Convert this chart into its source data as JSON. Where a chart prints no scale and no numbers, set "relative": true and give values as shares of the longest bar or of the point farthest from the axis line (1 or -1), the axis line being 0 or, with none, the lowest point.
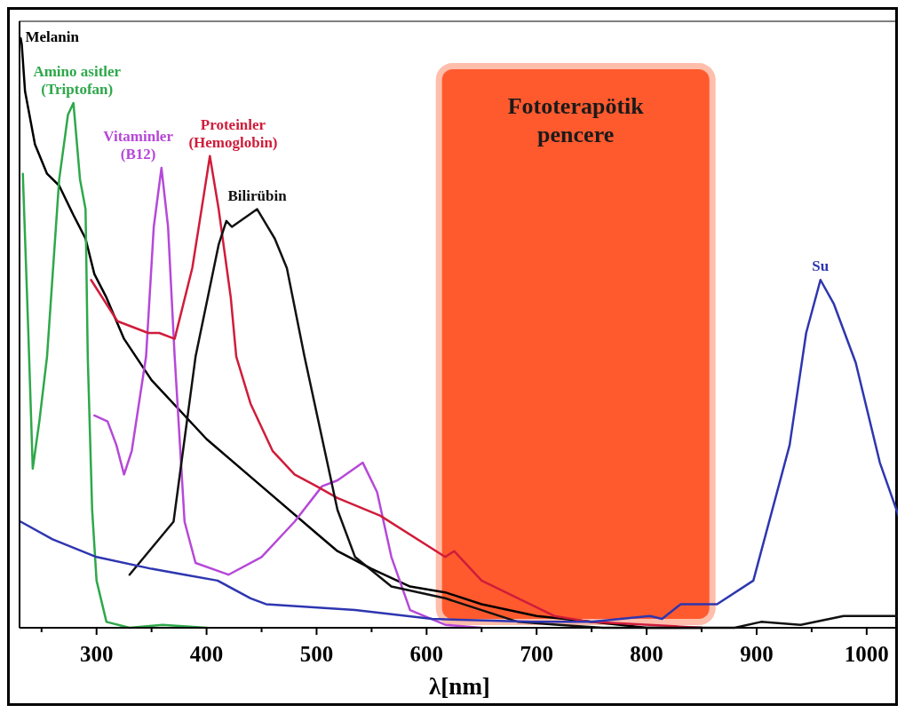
{
  "chart_data": {
    "type": "line",
    "relative": true,
    "xlabel": "λ[nm]",
    "xlim": [
      230,
      1030
    ],
    "xticks": [
      {
        "value": 250,
        "label": null
      },
      300,
      {
        "value": 350,
        "label": null
      },
      400,
      {
        "value": 450,
        "label": null
      },
      500,
      {
        "value": 550,
        "label": null
      },
      600,
      {
        "value": 650,
        "label": null
      },
      700,
      {
        "value": 750,
        "label": null
      },
      800,
      {
        "value": 850,
        "label": null
      },
      900,
      {
        "value": 950,
        "label": null
      },
      1000
    ],
    "bands": [
      {
        "axis": "x",
        "from": 614,
        "to": 857,
        "label": "Fototerapötik pencere",
        "color": "#ff5a2e"
      }
    ],
    "series": [
      {
        "name": "Melanin",
        "color": "#000000",
        "x": [
          231,
          232,
          235,
          244,
          255,
          266,
          279,
          290,
          298,
          309,
          325,
          350,
          400,
          450,
          500,
          519,
          550,
          585,
          617,
          650,
          700,
          750,
          800,
          850
        ],
        "values": [
          1,
          0.99,
          0.91,
          0.82,
          0.77,
          0.75,
          0.7,
          0.66,
          0.6,
          0.56,
          0.49,
          0.42,
          0.32,
          0.24,
          0.16,
          0.13,
          0.1,
          0.07,
          0.06,
          0.04,
          0.02,
          0.01,
          0,
          0
        ]
      },
      {
        "name": "Amino asitler (Triptofan)",
        "color": "#2ea84a",
        "x": [
          233,
          238,
          242,
          248,
          255,
          266,
          274,
          279,
          285,
          290,
          292,
          296,
          300,
          309,
          330,
          360,
          400
        ],
        "values": [
          0.77,
          0.5,
          0.27,
          0.35,
          0.46,
          0.76,
          0.87,
          0.89,
          0.76,
          0.71,
          0.46,
          0.2,
          0.08,
          0.01,
          0,
          0.005,
          0
        ]
      },
      {
        "name": "Vitaminler (B12)",
        "color": "#b648d8",
        "x": [
          298,
          310,
          318,
          325,
          332,
          345,
          352,
          359,
          365,
          371,
          380,
          390,
          420,
          450,
          480,
          505,
          519,
          542,
          555,
          568,
          585,
          617,
          650
        ],
        "values": [
          0.36,
          0.35,
          0.31,
          0.26,
          0.3,
          0.46,
          0.68,
          0.78,
          0.68,
          0.46,
          0.18,
          0.11,
          0.09,
          0.12,
          0.18,
          0.24,
          0.25,
          0.28,
          0.23,
          0.12,
          0.03,
          0.005,
          0
        ]
      },
      {
        "name": "Proteinler (Hemoglobin)",
        "color": "#d01c3a",
        "x": [
          295,
          319,
          347,
          357,
          371,
          387,
          398,
          403,
          411,
          422,
          427,
          440,
          460,
          480,
          500,
          519,
          558,
          617,
          625,
          650,
          716,
          749,
          850
        ],
        "values": [
          0.59,
          0.52,
          0.5,
          0.5,
          0.49,
          0.61,
          0.74,
          0.8,
          0.71,
          0.56,
          0.46,
          0.38,
          0.3,
          0.26,
          0.24,
          0.22,
          0.19,
          0.12,
          0.13,
          0.08,
          0.02,
          0.01,
          0
        ]
      },
      {
        "name": "Bilirübin",
        "color": "#111111",
        "x": [
          330,
          370,
          390,
          411,
          418,
          423,
          446,
          462,
          473,
          489,
          519,
          535,
          568,
          617,
          683,
          720,
          760,
          880,
          904,
          940,
          979,
          1029
        ],
        "values": [
          0.09,
          0.18,
          0.46,
          0.65,
          0.69,
          0.68,
          0.71,
          0.66,
          0.61,
          0.46,
          0.2,
          0.12,
          0.07,
          0.05,
          0.01,
          0.005,
          0,
          0,
          0.01,
          0.005,
          0.02,
          0.02
        ]
      },
      {
        "name": "Su",
        "color": "#2e36b0",
        "x": [
          231,
          260,
          300,
          350,
          380,
          410,
          440,
          454,
          535,
          605,
          696,
          750,
          803,
          814,
          831,
          864,
          897,
          930,
          945,
          958,
          970,
          990,
          1012,
          1029
        ],
        "values": [
          0.18,
          0.15,
          0.12,
          0.1,
          0.09,
          0.08,
          0.05,
          0.04,
          0.03,
          0.015,
          0.01,
          0.01,
          0.02,
          0.015,
          0.04,
          0.04,
          0.08,
          0.31,
          0.5,
          0.59,
          0.55,
          0.45,
          0.28,
          0.19
        ]
      }
    ]
  }
}
